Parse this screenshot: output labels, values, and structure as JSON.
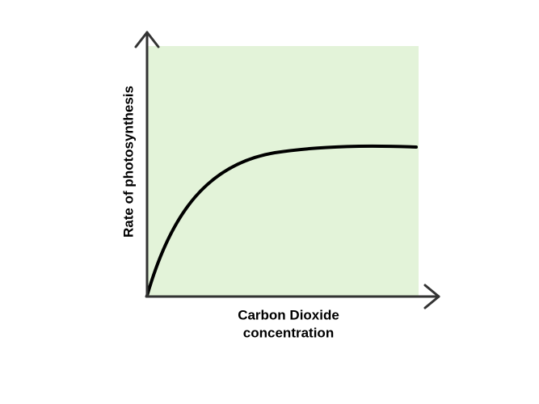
{
  "axes": {
    "y_label": "Rate of photosynthesis",
    "x_label": [
      "Carbon Dioxide",
      "concentration"
    ]
  }
}
